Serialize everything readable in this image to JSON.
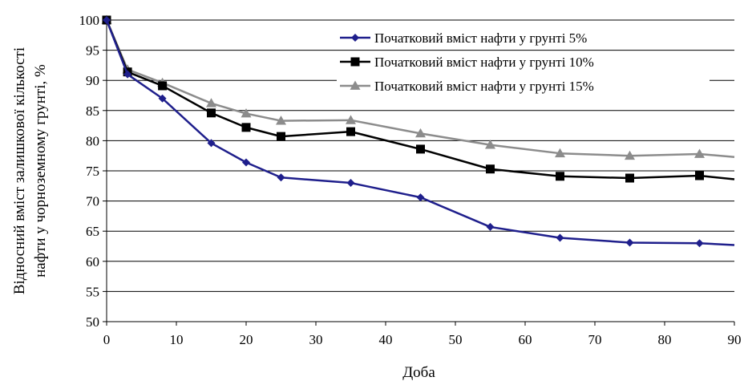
{
  "chart_data": {
    "type": "line",
    "xlabel": "Доба",
    "ylabel_lines": [
      "Відносний вміст залишкової кількості",
      "нафти у чорноземному грунті, %"
    ],
    "xlim": [
      0,
      90
    ],
    "ylim": [
      50,
      100
    ],
    "x_ticks": [
      0,
      10,
      20,
      30,
      40,
      50,
      60,
      70,
      80,
      90
    ],
    "y_ticks": [
      50,
      55,
      60,
      65,
      70,
      75,
      80,
      85,
      90,
      95,
      100
    ],
    "grid": "horizontal",
    "legend_position": "top-right",
    "series": [
      {
        "name": "Початковий вміст нафти у грунті 5%",
        "color": "#1f1f8c",
        "marker": "diamond",
        "x": [
          0,
          3,
          8,
          15,
          20,
          25,
          35,
          45,
          55,
          65,
          75,
          85,
          90
        ],
        "values": [
          100,
          91,
          87,
          79.6,
          76.4,
          73.9,
          73,
          70.6,
          65.7,
          63.9,
          63.1,
          63,
          62.7
        ]
      },
      {
        "name": "Початковий вміст нафти у грунті 10%",
        "color": "#000000",
        "marker": "square",
        "x": [
          0,
          3,
          8,
          15,
          20,
          25,
          35,
          45,
          55,
          65,
          75,
          85,
          90
        ],
        "values": [
          100,
          91.4,
          89.1,
          84.6,
          82.2,
          80.7,
          81.5,
          78.6,
          75.3,
          74.1,
          73.8,
          74.2,
          73.6
        ]
      },
      {
        "name": "Початковий вміст нафти у грунті 15%",
        "color": "#8c8c8c",
        "marker": "triangle",
        "x": [
          0,
          3,
          8,
          15,
          20,
          25,
          35,
          45,
          55,
          65,
          75,
          85,
          90
        ],
        "values": [
          100,
          91.8,
          89.6,
          86.2,
          84.5,
          83.3,
          83.4,
          81.2,
          79.3,
          77.9,
          77.5,
          77.8,
          77.3
        ]
      }
    ]
  }
}
